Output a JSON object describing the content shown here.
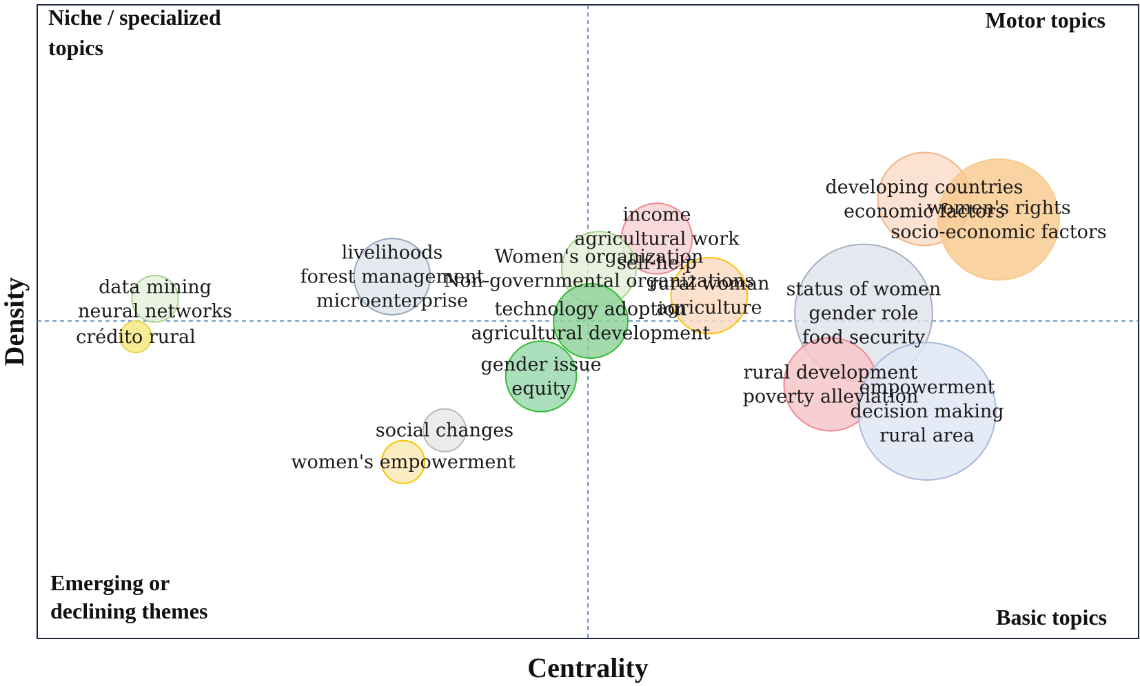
{
  "chart_data": {
    "type": "scatter",
    "subtype": "bubble",
    "xlabel": "Centrality",
    "ylabel": "Density",
    "grid": false,
    "quadrant_labels": {
      "top_left": [
        "Niche / specialized",
        "topics"
      ],
      "top_right": [
        "Motor topics"
      ],
      "bottom_left": [
        "Emerging or",
        "declining themes"
      ],
      "bottom_right": [
        "Basic topics"
      ]
    },
    "bubbles": [
      {
        "labels": [
          "income",
          "agricultural work",
          "self-help"
        ],
        "x": 0.125,
        "y": 0.26,
        "size": 0.38,
        "color": "#f7d2d4",
        "stroke": "#ee8890"
      },
      {
        "labels": [
          "Women's organization",
          "Non-governmental organizations"
        ],
        "x": 0.02,
        "y": 0.165,
        "size": 0.4,
        "color": "#e3efd8",
        "stroke": "#a9d18e"
      },
      {
        "labels": [
          "developing countries",
          "economic factors"
        ],
        "x": 0.61,
        "y": 0.385,
        "size": 0.5,
        "color": "#fbdcc8",
        "stroke": "#f4b183"
      },
      {
        "labels": [
          "women's rights",
          "socio-economic factors"
        ],
        "x": 0.745,
        "y": 0.32,
        "size": 0.65,
        "color": "#f9c98e",
        "stroke": "#f9c98e"
      },
      {
        "labels": [
          "data mining",
          "neural networks"
        ],
        "x": -0.785,
        "y": 0.07,
        "size": 0.25,
        "color": "#e6f1dc",
        "stroke": "#a9d18e"
      },
      {
        "labels": [
          "livelihoods",
          "forest management",
          "microenterprise"
        ],
        "x": -0.355,
        "y": 0.14,
        "size": 0.41,
        "color": "#dfe5ee",
        "stroke": "#97a7bd"
      },
      {
        "labels": [
          "rural woman",
          "agriculture"
        ],
        "x": 0.22,
        "y": 0.08,
        "size": 0.41,
        "color": "#fbdcc2",
        "stroke": "#ffc000"
      },
      {
        "labels": [
          "technology adoption",
          "agricultural development"
        ],
        "x": 0.005,
        "y": 0.0,
        "size": 0.4,
        "color": "#8fd29a",
        "stroke": "#33bb33"
      },
      {
        "labels": [
          "status of women",
          "gender role",
          "food security"
        ],
        "x": 0.5,
        "y": 0.025,
        "size": 0.74,
        "color": "#dfe3ec",
        "stroke": "#a7b0c0"
      },
      {
        "labels": [
          "crédito rural"
        ],
        "x": -0.82,
        "y": -0.05,
        "size": 0.17,
        "color": "#f6e880",
        "stroke": "#e6d55a"
      },
      {
        "labels": [
          "gender issue",
          "equity"
        ],
        "x": -0.085,
        "y": -0.175,
        "size": 0.38,
        "color": "#99d8ad",
        "stroke": "#33bb33"
      },
      {
        "labels": [
          "rural development",
          "poverty alleviation"
        ],
        "x": 0.44,
        "y": -0.2,
        "size": 0.5,
        "color": "#f7c4c7",
        "stroke": "#ee8890"
      },
      {
        "labels": [
          "empowerment",
          "decision making",
          "rural area"
        ],
        "x": 0.615,
        "y": -0.285,
        "size": 0.74,
        "color": "#dfe7f4",
        "stroke": "#a7badb"
      },
      {
        "labels": [
          "social changes"
        ],
        "x": -0.26,
        "y": -0.345,
        "size": 0.23,
        "color": "#e6e6e6",
        "stroke": "#b8b8b8"
      },
      {
        "labels": [
          "women's empowerment"
        ],
        "x": -0.335,
        "y": -0.445,
        "size": 0.23,
        "color": "#fae9b4",
        "stroke": "#f5c400"
      }
    ]
  }
}
